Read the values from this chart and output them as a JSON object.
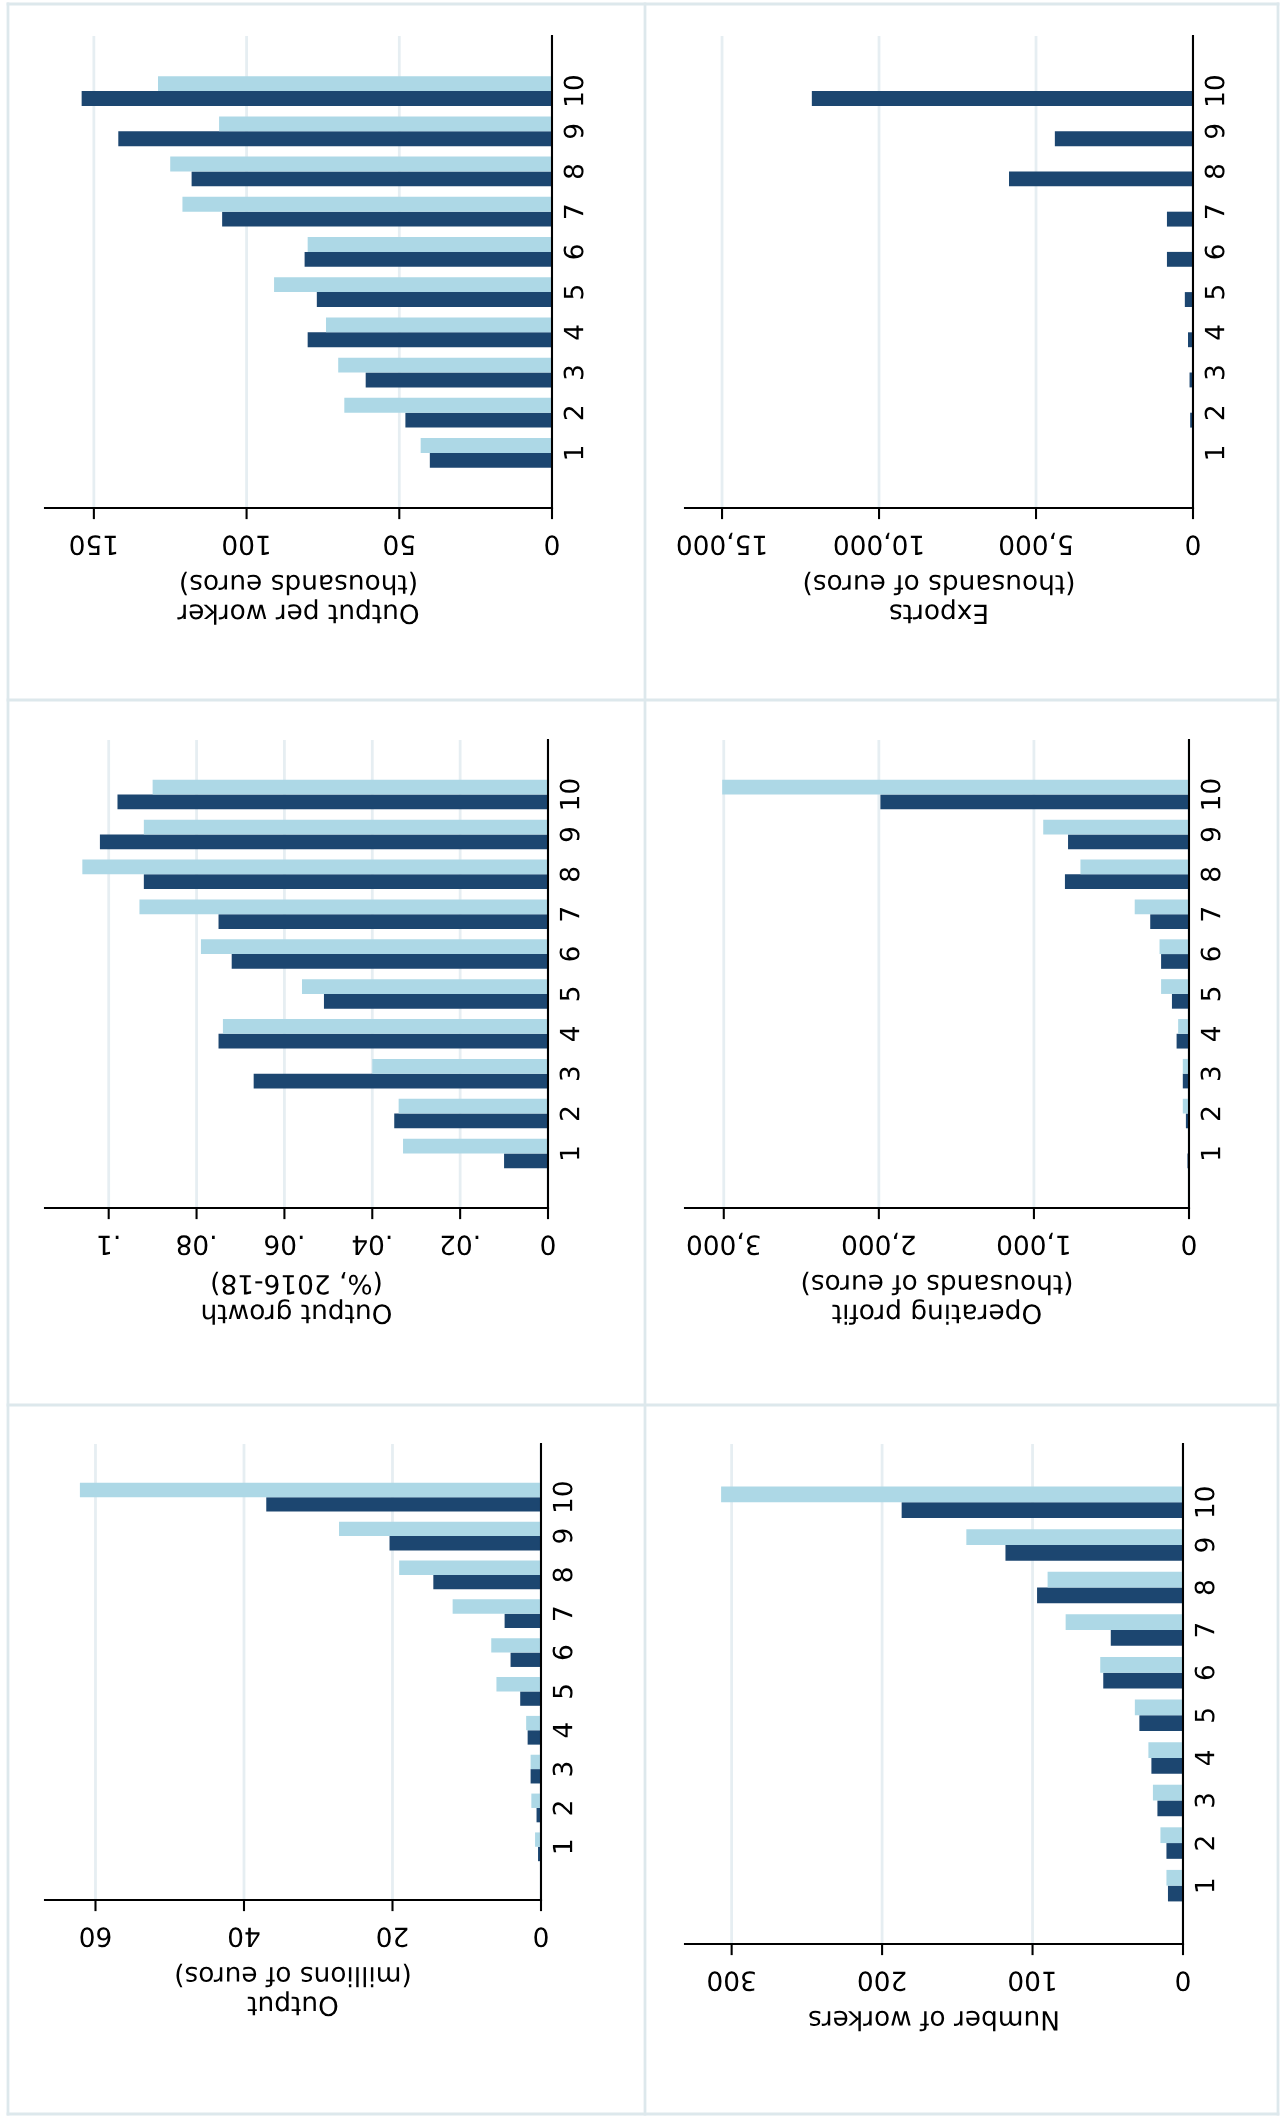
{
  "chart_data": [
    {
      "type": "bar",
      "orientation": "horizontal",
      "categories": [
        "10",
        "9",
        "8",
        "7",
        "6",
        "5",
        "4",
        "3",
        "2",
        "1"
      ],
      "xlabel": "Output per worker\n(thousands euros)",
      "xlim": [
        166,
        0
      ],
      "xticks": [
        150,
        100,
        50,
        0
      ],
      "grid": "x",
      "series": [
        {
          "color": "#1c4670",
          "values": [
            154,
            142,
            118,
            108,
            81,
            77,
            80,
            61,
            48,
            40
          ]
        },
        {
          "color": "#add8e6",
          "values": [
            129,
            109,
            125,
            121,
            80,
            91,
            74,
            70,
            68,
            43
          ]
        }
      ]
    },
    {
      "type": "bar",
      "orientation": "horizontal",
      "categories": [
        "10",
        "9",
        "8",
        "7",
        "6",
        "5",
        "4",
        "3",
        "2",
        "1"
      ],
      "xlabel": "Exports\n(thousands of euros)",
      "xlim": [
        16180,
        0
      ],
      "xticks": [
        {
          "value": 15000,
          "label": "15,000"
        },
        {
          "value": 10000,
          "label": "10,000"
        },
        {
          "value": 5000,
          "label": "5,000"
        },
        0
      ],
      "grid": "x",
      "series": [
        {
          "color": "#1c4670",
          "values": [
            12140,
            4400,
            5860,
            830,
            830,
            260,
            160,
            110,
            90,
            null
          ]
        },
        {
          "color": "#add8e6",
          "values": [
            null,
            0,
            0,
            0,
            0,
            0,
            0,
            0,
            0,
            0
          ]
        }
      ]
    },
    {
      "type": "bar",
      "orientation": "horizontal",
      "categories": [
        "10",
        "9",
        "8",
        "7",
        "6",
        "5",
        "4",
        "3",
        "2",
        "1"
      ],
      "xlabel": "Output growth\n(%, 2016-18)",
      "xlim": [
        0.1145,
        0
      ],
      "xticks": [
        {
          "value": 0.1,
          "label": ".1"
        },
        {
          "value": 0.08,
          "label": ".08"
        },
        {
          "value": 0.06,
          "label": ".06"
        },
        {
          "value": 0.04,
          "label": ".04"
        },
        {
          "value": 0.02,
          "label": ".02"
        },
        0
      ],
      "grid": "x",
      "series": [
        {
          "color": "#1c4670",
          "values": [
            0.098,
            0.102,
            0.092,
            0.075,
            0.072,
            0.051,
            0.075,
            0.067,
            0.035,
            0.01
          ]
        },
        {
          "color": "#add8e6",
          "values": [
            0.09,
            0.092,
            0.106,
            0.093,
            0.079,
            0.056,
            0.074,
            0.04,
            0.034,
            0.033
          ]
        }
      ]
    },
    {
      "type": "bar",
      "orientation": "horizontal",
      "categories": [
        "10",
        "9",
        "8",
        "7",
        "6",
        "5",
        "4",
        "3",
        "2",
        "1"
      ],
      "xlabel": "Operating profit\n(thousands of euros)",
      "xlim": [
        3250,
        0
      ],
      "xticks": [
        {
          "value": 3000,
          "label": "3,000"
        },
        {
          "value": 2000,
          "label": "2,000"
        },
        {
          "value": 1000,
          "label": "1,000"
        },
        0
      ],
      "grid": "x",
      "series": [
        {
          "color": "#1c4670",
          "values": [
            1990,
            780,
            800,
            250,
            180,
            110,
            80,
            40,
            20,
            10
          ]
        },
        {
          "color": "#add8e6",
          "values": [
            3010,
            940,
            700,
            350,
            190,
            180,
            70,
            40,
            40,
            null
          ]
        }
      ]
    },
    {
      "type": "bar",
      "orientation": "horizontal",
      "categories": [
        "10",
        "9",
        "8",
        "7",
        "6",
        "5",
        "4",
        "3",
        "2",
        "1"
      ],
      "xlabel": "Output\n(millions of euros)",
      "xlim": [
        66.8,
        0
      ],
      "xticks": [
        60,
        40,
        20,
        0
      ],
      "grid": "x",
      "series": [
        {
          "color": "#1c4670",
          "values": [
            37.0,
            20.4,
            14.5,
            4.9,
            4.1,
            2.8,
            1.8,
            1.4,
            0.6,
            0.4
          ]
        },
        {
          "color": "#add8e6",
          "values": [
            62.1,
            27.2,
            19.1,
            11.9,
            6.7,
            6.0,
            2.0,
            1.4,
            1.3,
            0.8
          ]
        }
      ]
    },
    {
      "type": "bar",
      "orientation": "horizontal",
      "categories": [
        "10",
        "9",
        "8",
        "7",
        "6",
        "5",
        "4",
        "3",
        "2",
        "1"
      ],
      "xlabel": "Number of workers",
      "xlim": [
        331,
        0
      ],
      "xticks": [
        300,
        200,
        100,
        0
      ],
      "grid": "x",
      "series": [
        {
          "color": "#1c4670",
          "values": [
            187,
            118,
            97,
            48,
            53,
            29,
            21,
            17,
            11,
            10
          ]
        },
        {
          "color": "#add8e6",
          "values": [
            307,
            144,
            90,
            78,
            55,
            32,
            23,
            20,
            15,
            11
          ]
        }
      ]
    }
  ]
}
